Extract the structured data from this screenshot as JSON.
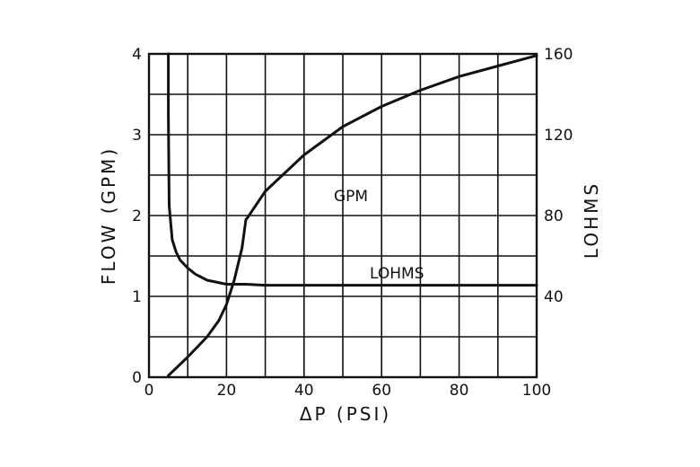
{
  "chart_data": {
    "type": "line",
    "xlabel": "ΔP   (PSI)",
    "ylabel_left": "FLOW   (GPM)",
    "ylabel_right": "LOHMS",
    "xlim": [
      0,
      100
    ],
    "ylim_left": [
      0,
      4
    ],
    "ylim_right": [
      0,
      160
    ],
    "x_ticks": [
      "0",
      "20",
      "40",
      "60",
      "80",
      "100"
    ],
    "y_left_ticks": [
      "0",
      "1",
      "2",
      "3",
      "4"
    ],
    "y_right_ticks": [
      "40",
      "80",
      "120",
      "160"
    ],
    "grid": true,
    "series": [
      {
        "name": "GPM",
        "axis": "left",
        "x": [
          5,
          10,
          15,
          18,
          20,
          22,
          24,
          25,
          25.5,
          30,
          40,
          50,
          60,
          70,
          80,
          90,
          100
        ],
        "y": [
          0.02,
          0.25,
          0.5,
          0.7,
          0.9,
          1.2,
          1.6,
          1.95,
          1.98,
          2.3,
          2.75,
          3.1,
          3.35,
          3.55,
          3.72,
          3.85,
          3.98
        ]
      },
      {
        "name": "LOHMS",
        "axis": "right",
        "x": [
          5,
          5,
          5.2,
          6,
          7,
          8,
          10,
          12,
          15,
          20,
          25,
          30,
          40,
          60,
          80,
          100
        ],
        "y": [
          160,
          130,
          85,
          68,
          62,
          58,
          54,
          51,
          48,
          46,
          46,
          45.5,
          45.5,
          45.5,
          45.5,
          45.5
        ]
      }
    ]
  }
}
